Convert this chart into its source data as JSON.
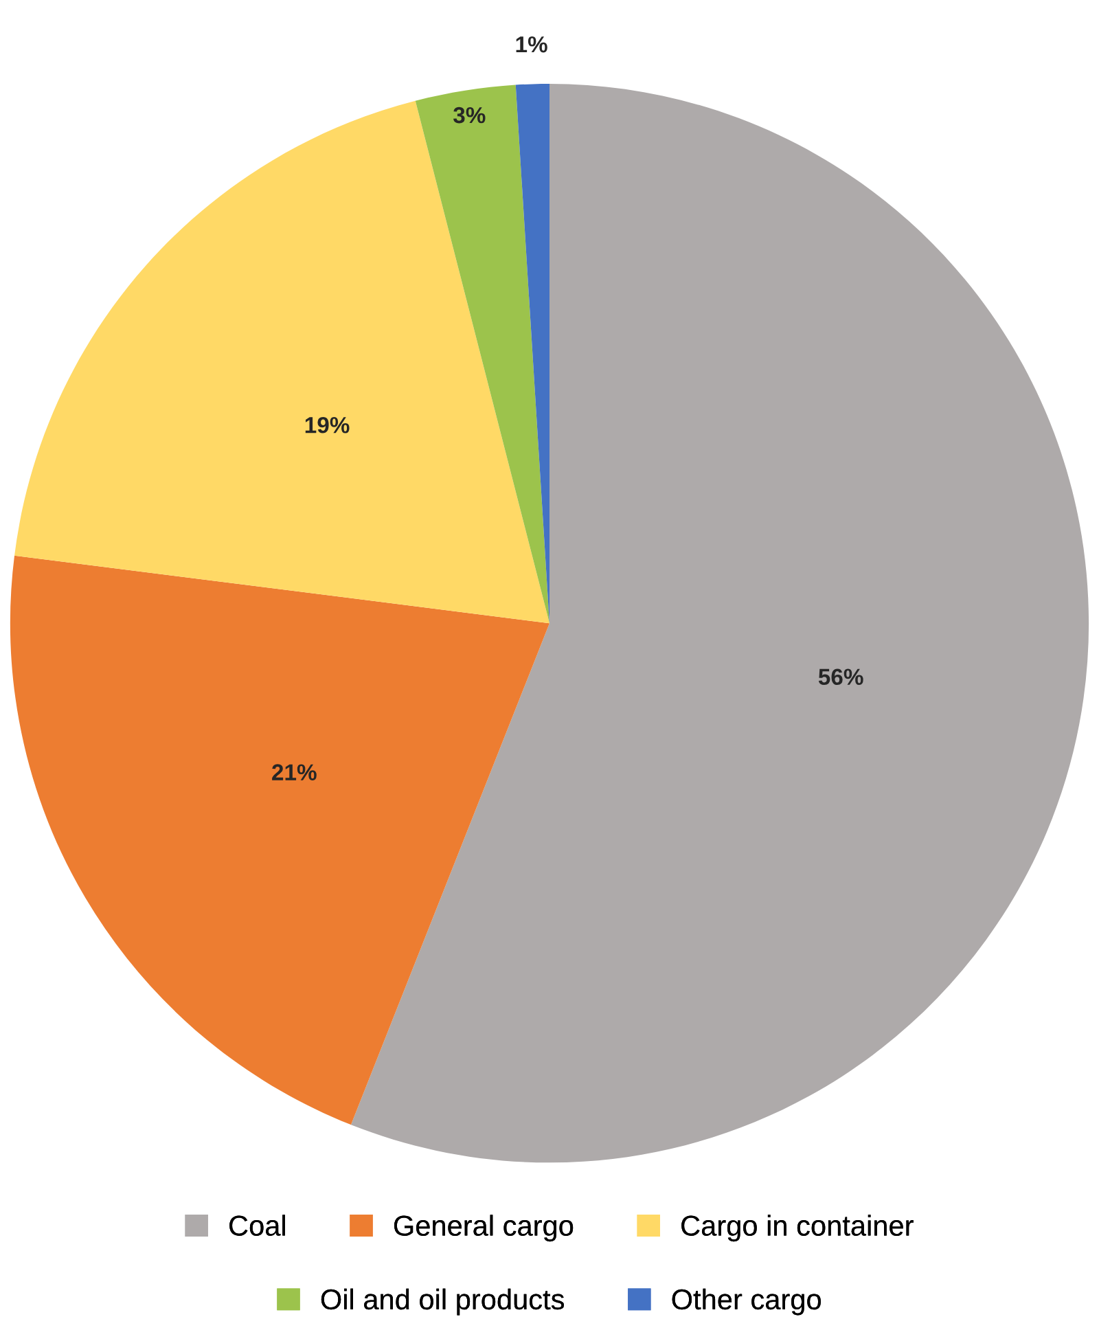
{
  "chart_data": {
    "type": "pie",
    "categories": [
      "Coal",
      "General cargo",
      "Cargo in container",
      "Oil and oil products",
      "Other cargo"
    ],
    "values": [
      56,
      21,
      19,
      3,
      1
    ],
    "colors": [
      "#aeaaaa",
      "#ed7d31",
      "#ffd966",
      "#9cc34c",
      "#4472c4"
    ],
    "value_labels": [
      "56%",
      "21%",
      "19%",
      "3%",
      "1%"
    ],
    "legend": "bottom"
  }
}
